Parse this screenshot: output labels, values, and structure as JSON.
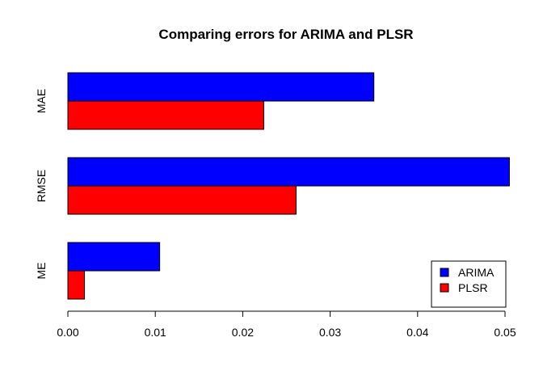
{
  "chart_data": {
    "type": "bar",
    "orientation": "horizontal",
    "title": "Comparing errors for ARIMA and PLSR",
    "xlabel": "",
    "ylabel": "",
    "categories": [
      "ME",
      "RMSE",
      "MAE"
    ],
    "series": [
      {
        "name": "ARIMA",
        "color": "#0000ff",
        "values": [
          0.0105,
          0.0505,
          0.035
        ]
      },
      {
        "name": "PLSR",
        "color": "#ff0000",
        "values": [
          0.0019,
          0.0261,
          0.0224
        ]
      }
    ],
    "xlim": [
      0,
      0.05
    ],
    "xticks": [
      "0.00",
      "0.01",
      "0.02",
      "0.03",
      "0.04",
      "0.05"
    ],
    "grid": false,
    "legend": {
      "position": "bottom-right",
      "entries": [
        "ARIMA",
        "PLSR"
      ]
    }
  }
}
